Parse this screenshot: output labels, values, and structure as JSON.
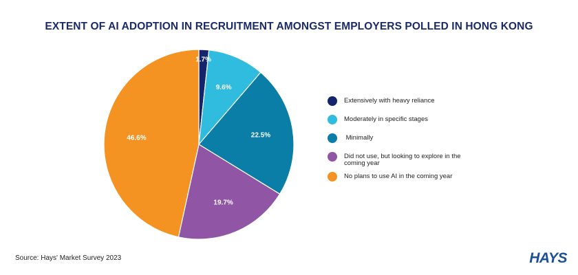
{
  "chart_data": {
    "type": "pie",
    "title": "EXTENT OF AI ADOPTION IN RECRUITMENT AMONGST EMPLOYERS POLLED IN HONG KONG",
    "categories": [
      "Extensively with heavy reliance",
      "Moderately in specific stages",
      " Minimally",
      "Did not use, but looking to explore in the coming year",
      "No plans to use AI in the coming year"
    ],
    "values": [
      1.7,
      9.6,
      22.5,
      19.7,
      46.6
    ],
    "labels": [
      "1.7%",
      "9.6%",
      "22.5%",
      "19.7%",
      "46.6%"
    ],
    "colors": [
      "#14256e",
      "#2fbcde",
      "#0a7ea7",
      "#9056a5",
      "#f59322"
    ],
    "legend_position": "right"
  },
  "footer": {
    "source": "Source: Hays' Market Survey 2023",
    "brand": "HAYS"
  }
}
